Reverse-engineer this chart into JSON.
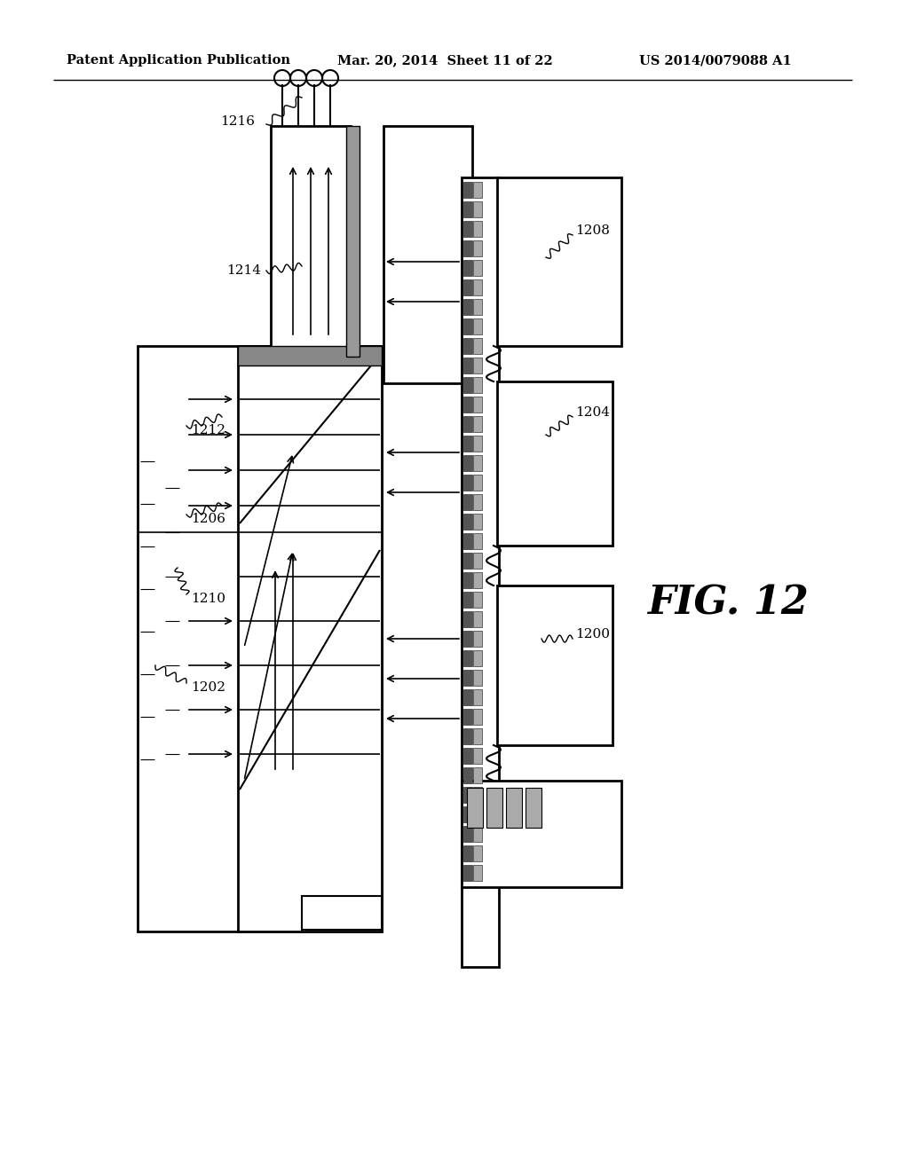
{
  "header_left": "Patent Application Publication",
  "header_mid": "Mar. 20, 2014  Sheet 11 of 22",
  "header_right": "US 2014/0079088 A1",
  "fig_label": "FIG. 12",
  "background": "#ffffff"
}
